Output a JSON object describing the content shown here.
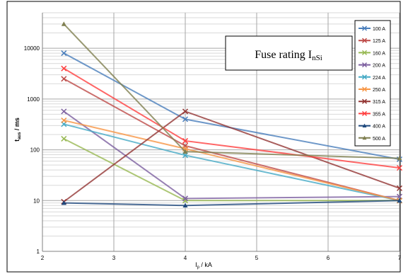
{
  "chart_data": {
    "type": "line",
    "xlabel_main": "I",
    "xlabel_sub": "p",
    "xlabel_rest": " / kA",
    "ylabel_main": "t",
    "ylabel_sub": "aus",
    "ylabel_rest": " / ms",
    "y_scale": "log",
    "xlim": [
      2,
      7
    ],
    "ylim": [
      1,
      50000
    ],
    "x_ticks": [
      "2",
      "3",
      "4",
      "5",
      "6",
      "7"
    ],
    "y_ticks": [
      "1",
      "10",
      "100",
      "1000",
      "10000"
    ],
    "grid": true,
    "legend_position": "right",
    "annotation": {
      "text": "Fuse rating I",
      "sub": "nSi"
    },
    "series": [
      {
        "name": "100 A",
        "color": "#4a7ebb",
        "marker": "x",
        "x": [
          2.3,
          4,
          7
        ],
        "y": [
          8000,
          400,
          65
        ]
      },
      {
        "name": "125 A",
        "color": "#be4b48",
        "marker": "x",
        "x": [
          2.3,
          4,
          7
        ],
        "y": [
          2500,
          120,
          10
        ]
      },
      {
        "name": "160 A",
        "color": "#98b954",
        "marker": "x",
        "x": [
          2.3,
          4,
          7
        ],
        "y": [
          165,
          10,
          10
        ]
      },
      {
        "name": "200 A",
        "color": "#7d60a0",
        "marker": "x",
        "x": [
          2.3,
          4,
          7
        ],
        "y": [
          570,
          11,
          12
        ]
      },
      {
        "name": "224 A",
        "color": "#46aac5",
        "marker": "x",
        "x": [
          2.3,
          4,
          7
        ],
        "y": [
          320,
          78,
          10
        ]
      },
      {
        "name": "250 A",
        "color": "#f79646",
        "marker": "x",
        "x": [
          2.3,
          4,
          7
        ],
        "y": [
          380,
          105,
          10
        ]
      },
      {
        "name": "315 A",
        "color": "#943634",
        "marker": "x",
        "x": [
          2.3,
          4,
          7
        ],
        "y": [
          9.5,
          570,
          17.5
        ]
      },
      {
        "name": "355 A",
        "color": "#ff4040",
        "marker": "x",
        "x": [
          2.3,
          4,
          7
        ],
        "y": [
          4000,
          150,
          44
        ]
      },
      {
        "name": "400 A",
        "color": "#1f497d",
        "marker": "triangle",
        "x": [
          2.3,
          4,
          7
        ],
        "y": [
          9,
          8,
          10
        ]
      },
      {
        "name": "500 A",
        "color": "#7f7f50",
        "marker": "triangle",
        "x": [
          2.3,
          4,
          7
        ],
        "y": [
          30000,
          92,
          68
        ]
      }
    ]
  }
}
